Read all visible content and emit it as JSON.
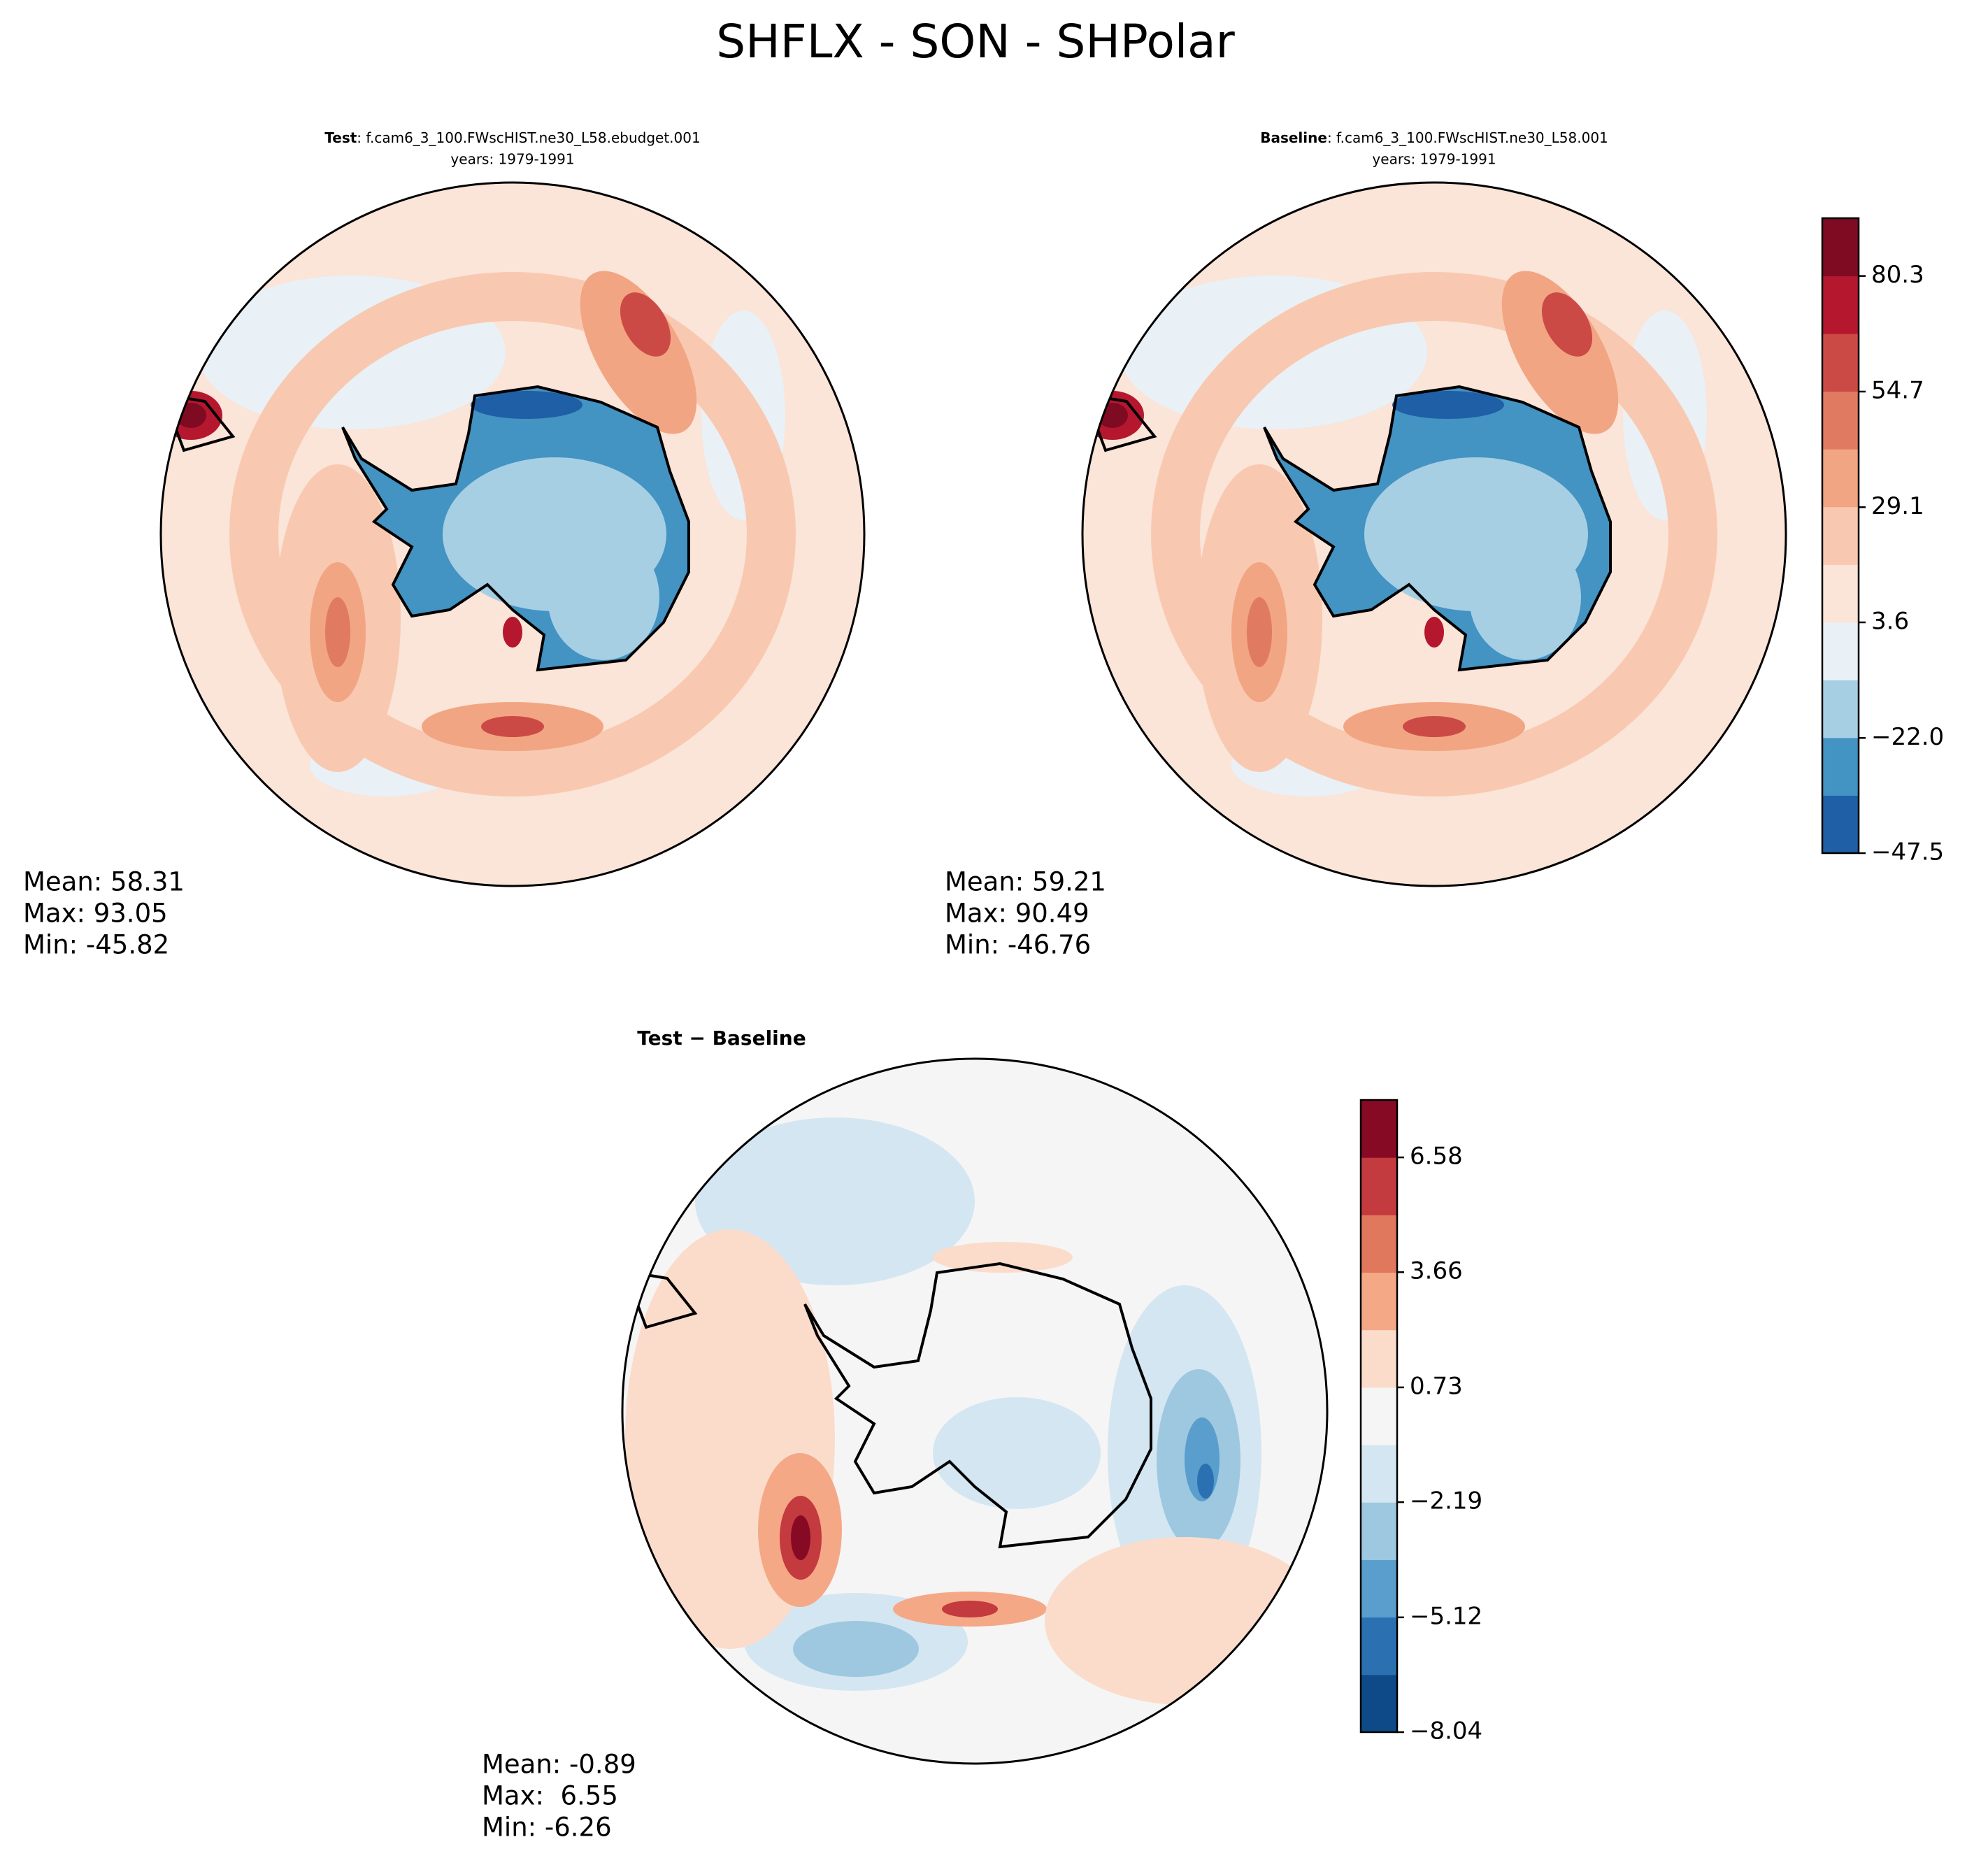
{
  "title": "SHFLX - SON - SHPolar",
  "chart_data": [
    {
      "type": "polar_contour",
      "name": "Test",
      "case": ": f.cam6_3_100.FWscHIST.ne30_L58.ebudget.001",
      "years": "years: 1979-1991",
      "stats": [
        "Mean: 58.31",
        "Max: 93.05",
        "Min: -45.82"
      ]
    },
    {
      "type": "polar_contour",
      "name": "Baseline",
      "case": ": f.cam6_3_100.FWscHIST.ne30_L58.001",
      "years": "years: 1979-1991",
      "stats": [
        "Mean: 59.21",
        "Max: 90.49",
        "Min: -46.76"
      ],
      "ylim": [
        -47.5,
        93.1
      ],
      "yticks": [
        {
          "value": -47.5,
          "label": "−47.5"
        },
        {
          "value": -22,
          "label": "−22.0"
        },
        3.6,
        29.1,
        54.7,
        80.3
      ],
      "colors": [
        "#1f5fa6",
        "#4393c3",
        "#a6cfe4",
        "#e9f0f6",
        "#fbe4d8",
        "#f8c9b0",
        "#f2a583",
        "#e07b62",
        "#cc4a46",
        "#b5172f",
        "#7f0b23"
      ]
    },
    {
      "type": "polar_contour",
      "name": "Test − Baseline",
      "stats": [
        "Mean: -0.89",
        "Max:  6.55",
        "Min: -6.26"
      ],
      "ylim": [
        -8.04,
        8.04
      ],
      "yticks": [
        {
          "value": -8.04,
          "label": "−8.04"
        },
        {
          "value": -5.12,
          "label": "−5.12"
        },
        {
          "value": -2.19,
          "label": "−2.19"
        },
        0.73,
        3.66,
        6.58
      ],
      "colors": [
        "#0d4a87",
        "#2b71b2",
        "#5a9ecd",
        "#9dc8e0",
        "#d4e6f1",
        "#f5f5f5",
        "#fbdccb",
        "#f5a886",
        "#e0785e",
        "#c33a3f",
        "#870a25"
      ]
    }
  ]
}
